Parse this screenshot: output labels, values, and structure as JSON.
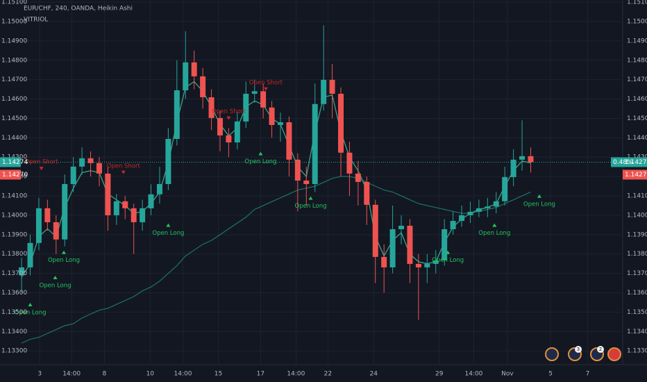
{
  "chart_data": {
    "type": "candlestick",
    "title": "EUR/CHF, 240, OANDA, Heikin Ashi",
    "indicator": "VITRIOL",
    "open": [
      1.1369,
      1.13731,
      1.13857,
      1.14036,
      1.13964,
      1.13875,
      1.14161,
      1.14251,
      1.14294,
      1.14269,
      1.14215,
      1.14,
      1.14072,
      1.14036,
      1.13964,
      1.14036,
      1.14108,
      1.14161,
      1.14394,
      1.14645,
      1.14789,
      1.14717,
      1.14609,
      1.14502,
      1.14412,
      1.14376,
      1.14484,
      1.14627,
      1.1464,
      1.14556,
      1.14466,
      1.1448,
      1.14287,
      1.14179,
      1.14161,
      1.14574,
      1.14699,
      1.14627,
      1.14323,
      1.14215,
      1.14172,
      1.14054,
      1.13785,
      1.13731,
      1.13928,
      1.13946,
      1.13749,
      1.13731,
      1.13749,
      1.13767,
      1.13928,
      1.13971,
      1.14,
      1.14018,
      1.14036,
      1.14045,
      1.14072,
      1.14197,
      1.14287,
      1.14305
    ],
    "high": [
      1.1378,
      1.139,
      1.1409,
      1.1408,
      1.14,
      1.1421,
      1.143,
      1.1435,
      1.1433,
      1.143,
      1.1425,
      1.1411,
      1.141,
      1.1406,
      1.1408,
      1.1416,
      1.1425,
      1.1445,
      1.148,
      1.1495,
      1.1485,
      1.1476,
      1.1465,
      1.1454,
      1.1445,
      1.1453,
      1.1469,
      1.147,
      1.1468,
      1.1459,
      1.1453,
      1.1451,
      1.1432,
      1.1425,
      1.1468,
      1.1498,
      1.1478,
      1.1466,
      1.1438,
      1.1428,
      1.142,
      1.1408,
      1.1385,
      1.1405,
      1.14,
      1.1398,
      1.138,
      1.138,
      1.1382,
      1.1398,
      1.1402,
      1.1405,
      1.1407,
      1.1408,
      1.1409,
      1.1412,
      1.1425,
      1.1434,
      1.1449,
      1.1435
    ],
    "low": [
      1.136,
      1.1369,
      1.1382,
      1.1392,
      1.138,
      1.1384,
      1.1412,
      1.1421,
      1.142,
      1.1415,
      1.1392,
      1.1395,
      1.1398,
      1.138,
      1.1392,
      1.14,
      1.1406,
      1.1413,
      1.1436,
      1.146,
      1.1465,
      1.1455,
      1.1444,
      1.1433,
      1.143,
      1.1434,
      1.1445,
      1.1458,
      1.145,
      1.144,
      1.1438,
      1.142,
      1.1402,
      1.1405,
      1.1412,
      1.1454,
      1.145,
      1.142,
      1.141,
      1.1405,
      1.1395,
      1.1365,
      1.136,
      1.137,
      1.1385,
      1.1365,
      1.1346,
      1.1365,
      1.137,
      1.1374,
      1.139,
      1.1394,
      1.1396,
      1.1399,
      1.1399,
      1.1401,
      1.1405,
      1.1415,
      1.1423,
      1.1422
    ],
    "close": [
      1.13731,
      1.13857,
      1.14036,
      1.13964,
      1.13875,
      1.14161,
      1.14251,
      1.14294,
      1.14269,
      1.14215,
      1.14,
      1.14072,
      1.14036,
      1.13964,
      1.14036,
      1.14108,
      1.14161,
      1.14394,
      1.14645,
      1.14789,
      1.14717,
      1.14609,
      1.14502,
      1.14412,
      1.14376,
      1.14484,
      1.14627,
      1.1464,
      1.14556,
      1.14466,
      1.1448,
      1.14287,
      1.14179,
      1.14161,
      1.14574,
      1.14699,
      1.14627,
      1.14323,
      1.14215,
      1.14172,
      1.14054,
      1.13785,
      1.13731,
      1.13928,
      1.13946,
      1.13749,
      1.13731,
      1.13749,
      1.13767,
      1.13928,
      1.13971,
      1.14,
      1.14018,
      1.14036,
      1.14045,
      1.14072,
      1.14197,
      1.14287,
      1.14305,
      1.14274
    ],
    "up_color": "#26a69a",
    "down_color": "#ef5350",
    "series": [
      {
        "color": "#3fbf9f",
        "values": [
          1.1368,
          1.1375,
          1.1389,
          1.1393,
          1.1389,
          1.1404,
          1.1414,
          1.1422,
          1.1423,
          1.1422,
          1.1411,
          1.1408,
          1.1405,
          1.1401,
          1.1402,
          1.1406,
          1.1412,
          1.1427,
          1.1448,
          1.1466,
          1.1469,
          1.1464,
          1.1456,
          1.1447,
          1.1441,
          1.1445,
          1.1456,
          1.1459,
          1.1457,
          1.145,
          1.1447,
          1.1436,
          1.1425,
          1.142,
          1.1443,
          1.1461,
          1.1462,
          1.1443,
          1.143,
          1.1423,
          1.1413,
          1.1389,
          1.1379,
          1.1387,
          1.1391,
          1.138,
          1.1376,
          1.1375,
          1.1376,
          1.1386,
          1.1394,
          1.1398,
          1.1401,
          1.1403,
          1.1404,
          1.1406,
          1.1415,
          1.1423,
          1.1428,
          1.1427
        ]
      },
      {
        "color": "#1d7d70",
        "values": [
          1.1334,
          1.1336,
          1.1337,
          1.1339,
          1.1341,
          1.1343,
          1.1344,
          1.1347,
          1.1349,
          1.1351,
          1.1352,
          1.1354,
          1.1356,
          1.1358,
          1.1361,
          1.1363,
          1.1366,
          1.137,
          1.1374,
          1.1379,
          1.1382,
          1.1385,
          1.1387,
          1.139,
          1.1393,
          1.1396,
          1.1399,
          1.1403,
          1.1405,
          1.1407,
          1.1409,
          1.1411,
          1.1413,
          1.1414,
          1.1415,
          1.1417,
          1.1419,
          1.142,
          1.142,
          1.1419,
          1.1417,
          1.1415,
          1.1413,
          1.1412,
          1.141,
          1.1408,
          1.1406,
          1.1405,
          1.1404,
          1.1403,
          1.1402,
          1.1401,
          1.1401,
          1.1402,
          1.1403,
          1.1404,
          1.1406,
          1.1408,
          1.141,
          1.1412
        ]
      }
    ],
    "signals": [
      {
        "label": "Open Long",
        "x": 1,
        "y": 1.1353
      },
      {
        "label": "Open Long",
        "x": 3.9,
        "y": 1.1367
      },
      {
        "label": "Open Long",
        "x": 4.9,
        "y": 1.138
      },
      {
        "label": "Open Short",
        "x": 2.3,
        "y": 1.1425
      },
      {
        "label": "Open Short",
        "x": 11.8,
        "y": 1.1423
      },
      {
        "label": "Open Long",
        "x": 17,
        "y": 1.1394
      },
      {
        "label": "Open Short",
        "x": 24,
        "y": 1.1451
      },
      {
        "label": "Open Short",
        "x": 28.3,
        "y": 1.1466
      },
      {
        "label": "Open Long",
        "x": 27.7,
        "y": 1.1431
      },
      {
        "label": "Open Long",
        "x": 33.5,
        "y": 1.1408
      },
      {
        "label": "Open Long",
        "x": 49.4,
        "y": 1.138
      },
      {
        "label": "Open Long",
        "x": 54.8,
        "y": 1.1394
      },
      {
        "label": "Open Long",
        "x": 60,
        "y": 1.1409
      }
    ],
    "last_price": 1.14274,
    "bid_price": {
      "value": 1.1427,
      "label": "1.14270"
    },
    "change_percent": {
      "value": 0.48,
      "label": "0.48%"
    },
    "event_badges": [
      "3",
      "2"
    ],
    "xlim": [
      -2.5,
      69.5
    ],
    "xticks": [
      {
        "value": 2.1,
        "label": "3"
      },
      {
        "value": 5.8,
        "label": "14:00"
      },
      {
        "value": 9.6,
        "label": "8"
      },
      {
        "value": 14.9,
        "label": "10"
      },
      {
        "value": 18.7,
        "label": "14:00"
      },
      {
        "value": 22.8,
        "label": "15"
      },
      {
        "value": 27.7,
        "label": "17"
      },
      {
        "value": 31.8,
        "label": "14:00"
      },
      {
        "value": 35.5,
        "label": "22"
      },
      {
        "value": 40.8,
        "label": "24"
      },
      {
        "value": 48.4,
        "label": "29"
      },
      {
        "value": 52.4,
        "label": "14:00"
      },
      {
        "value": 56.3,
        "label": "Nov"
      },
      {
        "value": 61.3,
        "label": "5"
      },
      {
        "value": 65.6,
        "label": "7"
      }
    ],
    "ylim": [
      1.13229,
      1.15111
    ],
    "yticks": [
      {
        "value": 1.133,
        "label": "1.13300"
      },
      {
        "value": 1.134,
        "label": "1.13400"
      },
      {
        "value": 1.135,
        "label": "1.13500"
      },
      {
        "value": 1.136,
        "label": "1.13600"
      },
      {
        "value": 1.137,
        "label": "1.13700"
      },
      {
        "value": 1.138,
        "label": "1.13800"
      },
      {
        "value": 1.139,
        "label": "1.13900"
      },
      {
        "value": 1.14,
        "label": "1.14000"
      },
      {
        "value": 1.141,
        "label": "1.14100"
      },
      {
        "value": 1.142,
        "label": "1.14200"
      },
      {
        "value": 1.143,
        "label": "1.14300"
      },
      {
        "value": 1.144,
        "label": "1.14400"
      },
      {
        "value": 1.145,
        "label": "1.14500"
      },
      {
        "value": 1.146,
        "label": "1.14600"
      },
      {
        "value": 1.147,
        "label": "1.14700"
      },
      {
        "value": 1.148,
        "label": "1.14800"
      },
      {
        "value": 1.149,
        "label": "1.14900"
      },
      {
        "value": 1.15,
        "label": "1.15000"
      },
      {
        "value": 1.151,
        "label": "1.15100"
      }
    ],
    "grid": true
  }
}
